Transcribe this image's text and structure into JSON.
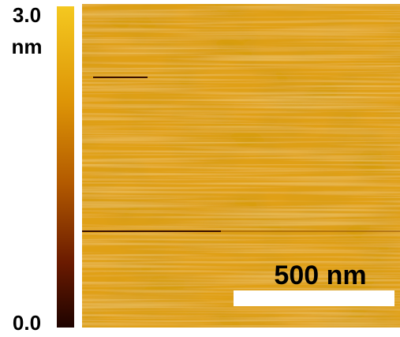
{
  "colorbar": {
    "max_label": "3.0",
    "unit": "nm",
    "min_label": "0.0"
  },
  "scale_bar": {
    "label": "500 nm"
  }
}
